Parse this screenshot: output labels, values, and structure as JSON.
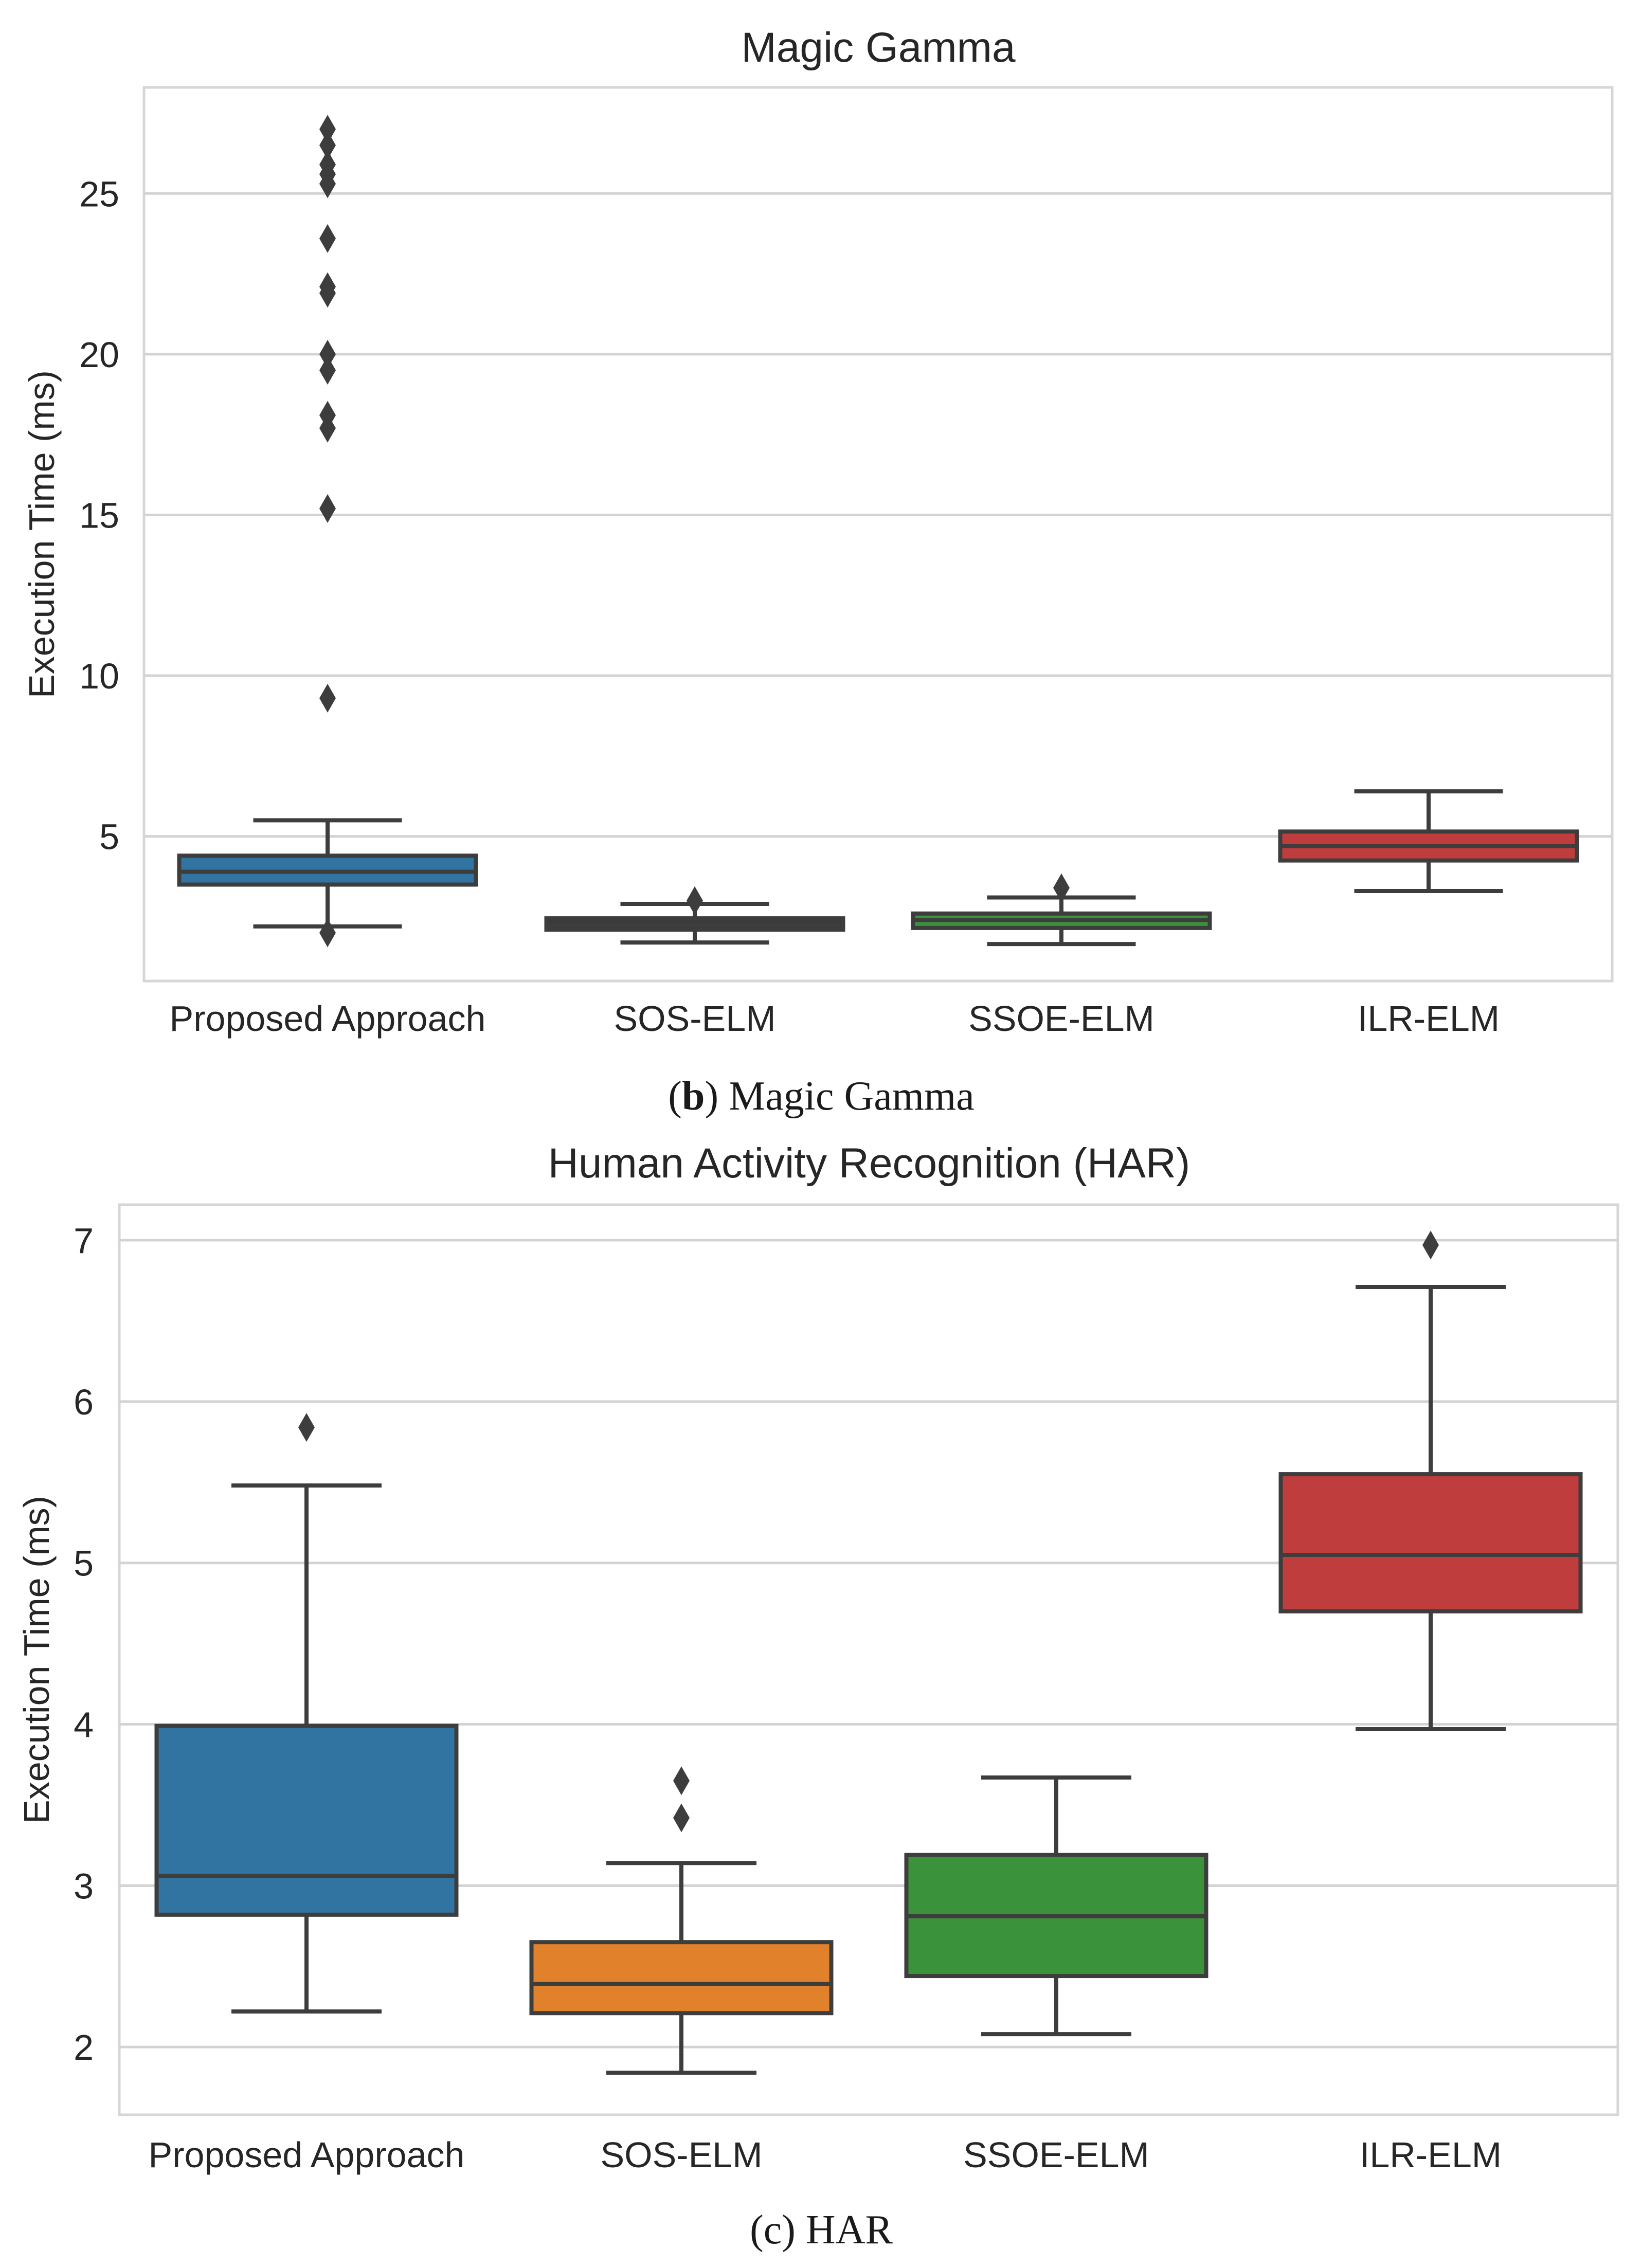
{
  "chart_data": [
    {
      "type": "box",
      "title": "Magic Gamma",
      "xlabel": "",
      "ylabel": "Execution Time (ms)",
      "ylim": [
        0.5,
        28.3
      ],
      "yticks": [
        5,
        10,
        15,
        20,
        25
      ],
      "grid": true,
      "categories": [
        "Proposed Approach",
        "SOS-ELM",
        "SSOE-ELM",
        "ILR-ELM"
      ],
      "colors": [
        "#3274a1",
        "#3a3a3a",
        "#3a923a",
        "#c03d3e"
      ],
      "series": [
        {
          "name": "Proposed Approach",
          "whisker_low": 2.2,
          "q1": 3.5,
          "median": 3.9,
          "q3": 4.4,
          "whisker_high": 5.5,
          "outliers": [
            2.0,
            9.3,
            15.2,
            17.7,
            18.1,
            19.5,
            20.0,
            21.9,
            22.1,
            23.6,
            25.3,
            25.6,
            25.9,
            26.5,
            27.0
          ]
        },
        {
          "name": "SOS-ELM",
          "whisker_low": 1.7,
          "q1": 2.1,
          "median": 2.25,
          "q3": 2.45,
          "whisker_high": 2.9,
          "outliers": [
            3.0
          ]
        },
        {
          "name": "SSOE-ELM",
          "whisker_low": 1.65,
          "q1": 2.15,
          "median": 2.4,
          "q3": 2.6,
          "whisker_high": 3.1,
          "outliers": [
            3.4
          ]
        },
        {
          "name": "ILR-ELM",
          "whisker_low": 3.3,
          "q1": 4.25,
          "median": 4.7,
          "q3": 5.15,
          "whisker_high": 6.4,
          "outliers": []
        }
      ],
      "caption_label": "b",
      "caption_text": " Magic Gamma"
    },
    {
      "type": "box",
      "title": "Human Activity Recognition (HAR)",
      "xlabel": "",
      "ylabel": "Execution Time (ms)",
      "ylim": [
        1.58,
        7.22
      ],
      "yticks": [
        2,
        3,
        4,
        5,
        6,
        7
      ],
      "grid": true,
      "categories": [
        "Proposed Approach",
        "SOS-ELM",
        "SSOE-ELM",
        "ILR-ELM"
      ],
      "colors": [
        "#3274a1",
        "#e1812c",
        "#3a923a",
        "#c03d3e"
      ],
      "series": [
        {
          "name": "Proposed Approach",
          "whisker_low": 2.22,
          "q1": 2.82,
          "median": 3.06,
          "q3": 3.99,
          "whisker_high": 5.48,
          "outliers": [
            5.84
          ]
        },
        {
          "name": "SOS-ELM",
          "whisker_low": 1.84,
          "q1": 2.21,
          "median": 2.39,
          "q3": 2.65,
          "whisker_high": 3.14,
          "outliers": [
            3.42,
            3.65
          ]
        },
        {
          "name": "SSOE-ELM",
          "whisker_low": 2.08,
          "q1": 2.44,
          "median": 2.81,
          "q3": 3.19,
          "whisker_high": 3.67,
          "outliers": []
        },
        {
          "name": "ILR-ELM",
          "whisker_low": 3.97,
          "q1": 4.7,
          "median": 5.05,
          "q3": 5.55,
          "whisker_high": 6.71,
          "outliers": [
            6.97
          ]
        }
      ],
      "caption_label": "",
      "caption_text": "(c) HAR"
    }
  ]
}
